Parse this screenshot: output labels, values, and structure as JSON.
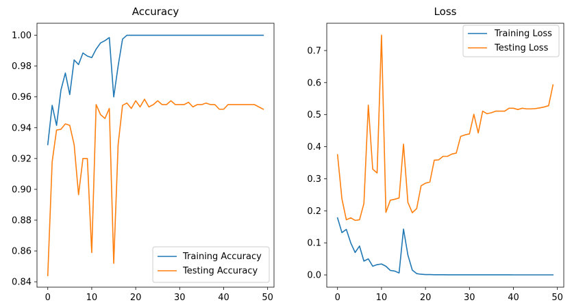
{
  "chart_data": [
    {
      "type": "line",
      "title": "Accuracy",
      "xlabel": "",
      "ylabel": "",
      "xlim": [
        -2.45,
        51.45
      ],
      "ylim": [
        0.8365,
        1.0078
      ],
      "x_ticks": [
        0,
        10,
        20,
        30,
        40,
        50
      ],
      "x_tick_labels": [
        "0",
        "10",
        "20",
        "30",
        "40",
        "50"
      ],
      "y_ticks": [
        0.84,
        0.86,
        0.88,
        0.9,
        0.92,
        0.94,
        0.96,
        0.98,
        1.0
      ],
      "y_tick_labels": [
        "0.84",
        "0.86",
        "0.88",
        "0.90",
        "0.92",
        "0.94",
        "0.96",
        "0.98",
        "1.00"
      ],
      "grid": false,
      "legend_position": "bottom-right",
      "x": [
        0,
        1,
        2,
        3,
        4,
        5,
        6,
        7,
        8,
        9,
        10,
        11,
        12,
        13,
        14,
        15,
        16,
        17,
        18,
        19,
        20,
        21,
        22,
        23,
        24,
        25,
        26,
        27,
        28,
        29,
        30,
        31,
        32,
        33,
        34,
        35,
        36,
        37,
        38,
        39,
        40,
        41,
        42,
        43,
        44,
        45,
        46,
        47,
        48,
        49
      ],
      "series": [
        {
          "name": "Training Accuracy",
          "color": "#1f77b4",
          "values": [
            0.929,
            0.9545,
            0.9415,
            0.9645,
            0.9755,
            0.9615,
            0.984,
            0.981,
            0.9885,
            0.9865,
            0.9855,
            0.991,
            0.995,
            0.9965,
            0.9985,
            0.96,
            0.98,
            0.9975,
            1.0,
            1.0,
            1.0,
            1.0,
            1.0,
            1.0,
            1.0,
            1.0,
            1.0,
            1.0,
            1.0,
            1.0,
            1.0,
            1.0,
            1.0,
            1.0,
            1.0,
            1.0,
            1.0,
            1.0,
            1.0,
            1.0,
            1.0,
            1.0,
            1.0,
            1.0,
            1.0,
            1.0,
            1.0,
            1.0,
            1.0,
            1.0
          ]
        },
        {
          "name": "Testing Accuracy",
          "color": "#ff7f0e",
          "values": [
            0.844,
            0.918,
            0.9385,
            0.939,
            0.9425,
            0.9415,
            0.929,
            0.8965,
            0.92,
            0.92,
            0.859,
            0.955,
            0.9485,
            0.946,
            0.9525,
            0.852,
            0.929,
            0.9545,
            0.956,
            0.9525,
            0.9575,
            0.9535,
            0.9585,
            0.9535,
            0.955,
            0.9575,
            0.955,
            0.955,
            0.9575,
            0.955,
            0.955,
            0.955,
            0.9565,
            0.9535,
            0.955,
            0.955,
            0.956,
            0.955,
            0.955,
            0.952,
            0.952,
            0.955,
            0.955,
            0.955,
            0.955,
            0.955,
            0.955,
            0.955,
            0.9535,
            0.952
          ]
        }
      ]
    },
    {
      "type": "line",
      "title": "Loss",
      "xlabel": "",
      "ylabel": "",
      "xlim": [
        -2.45,
        51.45
      ],
      "ylim": [
        -0.0383,
        0.7852
      ],
      "x_ticks": [
        0,
        10,
        20,
        30,
        40,
        50
      ],
      "x_tick_labels": [
        "0",
        "10",
        "20",
        "30",
        "40",
        "50"
      ],
      "y_ticks": [
        0.0,
        0.1,
        0.2,
        0.3,
        0.4,
        0.5,
        0.6,
        0.7
      ],
      "y_tick_labels": [
        "0.0",
        "0.1",
        "0.2",
        "0.3",
        "0.4",
        "0.5",
        "0.6",
        "0.7"
      ],
      "grid": false,
      "legend_position": "top-right",
      "x": [
        0,
        1,
        2,
        3,
        4,
        5,
        6,
        7,
        8,
        9,
        10,
        11,
        12,
        13,
        14,
        15,
        16,
        17,
        18,
        19,
        20,
        21,
        22,
        23,
        24,
        25,
        26,
        27,
        28,
        29,
        30,
        31,
        32,
        33,
        34,
        35,
        36,
        37,
        38,
        39,
        40,
        41,
        42,
        43,
        44,
        45,
        46,
        47,
        48,
        49
      ],
      "series": [
        {
          "name": "Training Loss",
          "color": "#1f77b4",
          "values": [
            0.178,
            0.132,
            0.142,
            0.1,
            0.07,
            0.09,
            0.043,
            0.05,
            0.027,
            0.032,
            0.034,
            0.027,
            0.014,
            0.012,
            0.006,
            0.143,
            0.062,
            0.015,
            0.004,
            0.002,
            0.001,
            0.001,
            0.0005,
            0.0005,
            0.0005,
            0.0003,
            0.0003,
            0.0003,
            0.0003,
            0.0003,
            0.0002,
            0.0002,
            0.0002,
            0.0002,
            0.0002,
            0.0002,
            0.0002,
            0.0002,
            0.0002,
            0.0002,
            0.0001,
            0.0001,
            0.0001,
            0.0001,
            0.0001,
            0.0001,
            0.0001,
            0.0001,
            0.0001,
            0.0001
          ]
        },
        {
          "name": "Testing Loss",
          "color": "#ff7f0e",
          "values": [
            0.375,
            0.237,
            0.172,
            0.178,
            0.17,
            0.172,
            0.223,
            0.53,
            0.33,
            0.318,
            0.748,
            0.195,
            0.233,
            0.236,
            0.24,
            0.408,
            0.226,
            0.194,
            0.207,
            0.278,
            0.286,
            0.29,
            0.358,
            0.359,
            0.37,
            0.37,
            0.377,
            0.38,
            0.432,
            0.437,
            0.44,
            0.501,
            0.443,
            0.511,
            0.503,
            0.506,
            0.511,
            0.511,
            0.511,
            0.52,
            0.52,
            0.516,
            0.52,
            0.518,
            0.518,
            0.519,
            0.521,
            0.524,
            0.528,
            0.593
          ]
        }
      ]
    }
  ]
}
